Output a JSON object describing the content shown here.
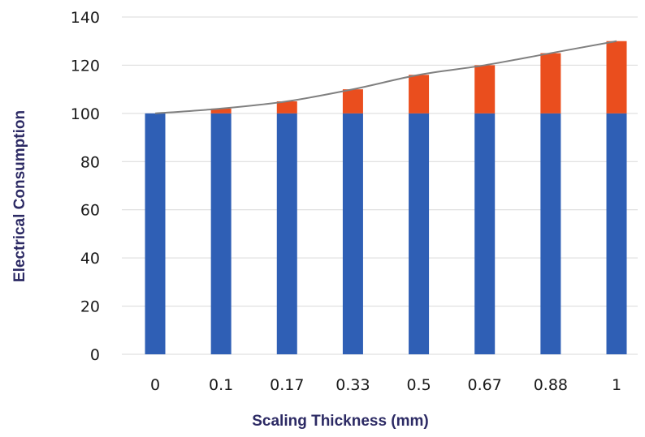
{
  "chart_data": {
    "type": "bar",
    "stacked": true,
    "categories": [
      "0",
      "0.1",
      "0.17",
      "0.33",
      "0.5",
      "0.67",
      "0.88",
      "1"
    ],
    "series": [
      {
        "values": [
          100,
          100,
          100,
          100,
          100,
          100,
          100,
          100
        ],
        "color": "#2f5fb5"
      },
      {
        "values": [
          0,
          2,
          5,
          10,
          16,
          20,
          25,
          30
        ],
        "color": "#ea4e1e"
      }
    ],
    "line": {
      "values": [
        100,
        102,
        105,
        110,
        116,
        120,
        125,
        130
      ],
      "color": "#808080"
    },
    "xlabel": "Scaling Thickness (mm)",
    "ylabel": "Electrical Consumption",
    "axis_title_color": "#2c2a64",
    "ylim": [
      0,
      140
    ],
    "yticks": [
      0,
      20,
      40,
      60,
      80,
      100,
      120,
      140
    ],
    "grid": true
  }
}
